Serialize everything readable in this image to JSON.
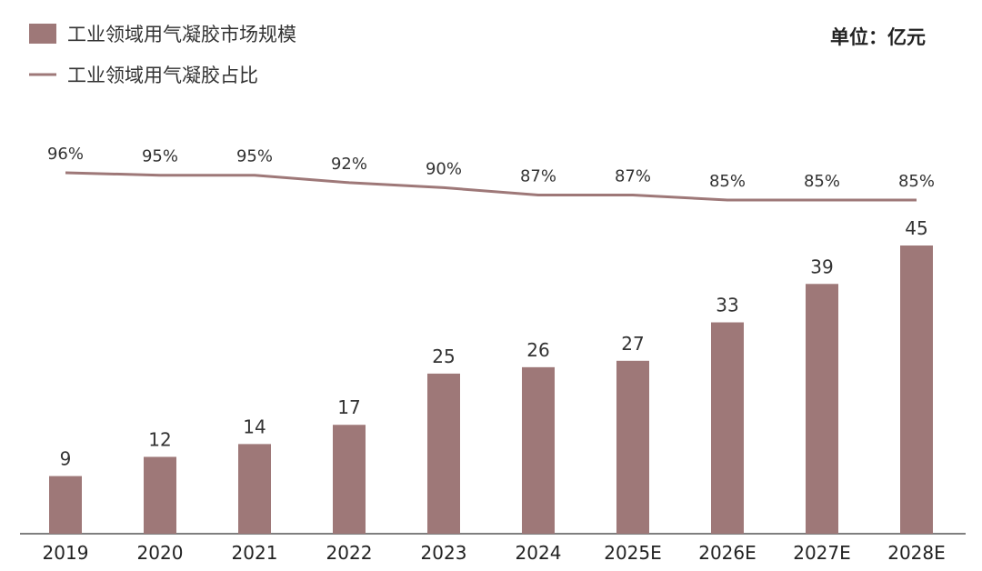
{
  "chart_data": {
    "type": "bar",
    "categories": [
      "2019",
      "2020",
      "2021",
      "2022",
      "2023",
      "2024",
      "2025E",
      "2026E",
      "2027E",
      "2028E"
    ],
    "series": [
      {
        "name": "工业领域用气凝胶市场规模",
        "kind": "bar",
        "values": [
          9,
          12,
          14,
          17,
          25,
          26,
          27,
          33,
          39,
          45
        ],
        "labels": [
          "9",
          "12",
          "14",
          "17",
          "25",
          "26",
          "27",
          "33",
          "39",
          "45"
        ]
      },
      {
        "name": "工业领域用气凝胶占比",
        "kind": "line",
        "values": [
          96,
          95,
          95,
          92,
          90,
          87,
          87,
          85,
          85,
          85
        ],
        "labels": [
          "96%",
          "95%",
          "95%",
          "92%",
          "90%",
          "87%",
          "87%",
          "85%",
          "85%",
          "85%"
        ]
      }
    ],
    "unit": "单位：亿元",
    "legend_position": "top-left",
    "colors": {
      "bar": "#9e7878",
      "line": "#9e7878",
      "axis": "#555555"
    },
    "grid": false
  }
}
